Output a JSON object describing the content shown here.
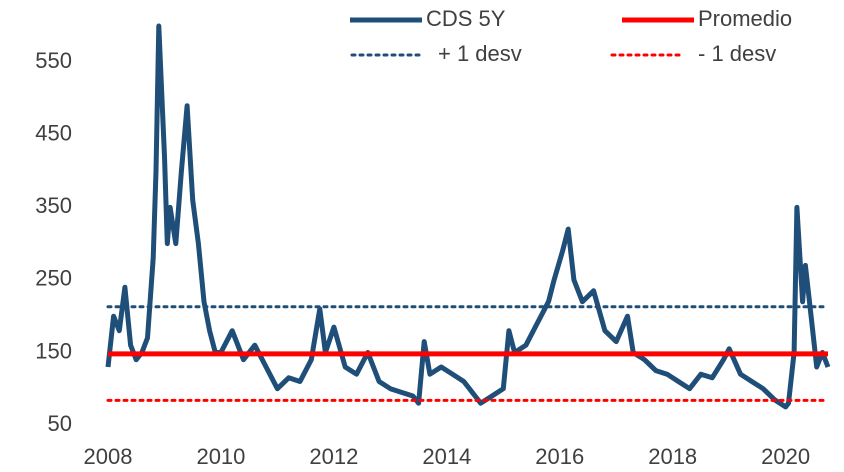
{
  "chart_data": {
    "type": "line",
    "x": [
      2008.0,
      2008.1,
      2008.2,
      2008.3,
      2008.4,
      2008.5,
      2008.6,
      2008.7,
      2008.8,
      2008.85,
      2008.9,
      2009.0,
      2009.05,
      2009.1,
      2009.2,
      2009.3,
      2009.4,
      2009.5,
      2009.6,
      2009.7,
      2009.8,
      2009.9,
      2010.0,
      2010.2,
      2010.4,
      2010.6,
      2010.8,
      2011.0,
      2011.2,
      2011.4,
      2011.6,
      2011.75,
      2011.85,
      2012.0,
      2012.2,
      2012.4,
      2012.6,
      2012.8,
      2013.0,
      2013.2,
      2013.4,
      2013.5,
      2013.6,
      2013.7,
      2013.9,
      2014.1,
      2014.3,
      2014.5,
      2014.6,
      2014.8,
      2015.0,
      2015.1,
      2015.2,
      2015.4,
      2015.6,
      2015.8,
      2015.9,
      2016.05,
      2016.15,
      2016.25,
      2016.4,
      2016.6,
      2016.8,
      2017.0,
      2017.2,
      2017.3,
      2017.5,
      2017.7,
      2017.9,
      2018.1,
      2018.3,
      2018.5,
      2018.7,
      2018.9,
      2019.0,
      2019.2,
      2019.4,
      2019.6,
      2019.8,
      2020.0,
      2020.05,
      2020.15,
      2020.2,
      2020.3,
      2020.35,
      2020.45,
      2020.55,
      2020.65,
      2020.75
    ],
    "series": [
      {
        "name": "CDS 5Y",
        "color": "#1f4e79",
        "values": [
          130,
          200,
          180,
          240,
          160,
          140,
          150,
          170,
          280,
          400,
          600,
          420,
          300,
          350,
          300,
          400,
          490,
          360,
          300,
          220,
          180,
          150,
          150,
          180,
          140,
          160,
          130,
          100,
          115,
          110,
          140,
          210,
          150,
          185,
          130,
          120,
          150,
          110,
          100,
          95,
          90,
          80,
          165,
          120,
          130,
          120,
          110,
          90,
          80,
          90,
          100,
          180,
          150,
          160,
          190,
          220,
          250,
          290,
          320,
          250,
          220,
          235,
          180,
          165,
          200,
          150,
          140,
          125,
          120,
          110,
          100,
          120,
          115,
          140,
          155,
          120,
          110,
          100,
          85,
          75,
          80,
          150,
          350,
          220,
          270,
          200,
          130,
          150,
          130
        ]
      },
      {
        "name": "Promedio",
        "color": "#ff0000",
        "value": 148,
        "dash": false
      },
      {
        "name": "+ 1 desv",
        "color": "#1f4e79",
        "value": 213,
        "dash": true
      },
      {
        "name": "- 1 desv",
        "color": "#ff0000",
        "value": 84,
        "dash": true
      }
    ],
    "xlim": [
      2008,
      2020.75
    ],
    "xticks": [
      2008,
      2010,
      2012,
      2014,
      2016,
      2018,
      2020
    ],
    "ylim": [
      50,
      600
    ],
    "yticks": [
      50,
      150,
      250,
      350,
      450,
      550
    ],
    "grid": false
  }
}
